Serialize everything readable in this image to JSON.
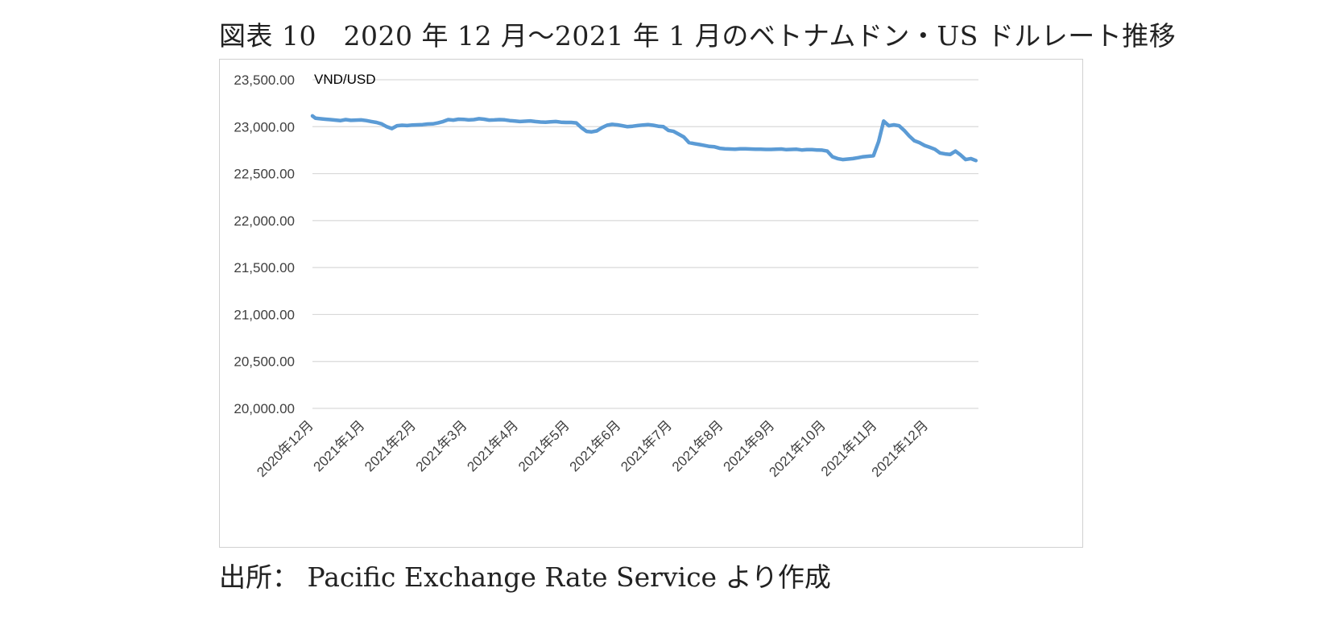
{
  "figure": {
    "title": "図表 10　2020 年 12 月～2021 年 1 月のベトナムドン・US ドルレート推移",
    "source": "出所：  Pacific Exchange Rate Service より作成"
  },
  "chart_data": {
    "type": "line",
    "title": "",
    "ylabel": "VND/USD",
    "xlabel": "",
    "ylim": [
      20000,
      23500
    ],
    "y_ticks": [
      "23,500.00",
      "23,000.00",
      "22,500.00",
      "22,000.00",
      "21,500.00",
      "21,000.00",
      "20,500.00",
      "20,000.00"
    ],
    "y_tick_values": [
      23500,
      23000,
      22500,
      22000,
      21500,
      21000,
      20500,
      20000
    ],
    "categories": [
      "2020年12月",
      "2021年1月",
      "2021年2月",
      "2021年3月",
      "2021年4月",
      "2021年5月",
      "2021年6月",
      "2021年7月",
      "2021年8月",
      "2021年9月",
      "2021年10月",
      "2021年11月",
      "2021年12月"
    ],
    "grid": true,
    "legend": "none",
    "line_color": "#5B9BD5",
    "series": [
      {
        "x": [
          0,
          0.06,
          0.15,
          0.25,
          0.35,
          0.45,
          0.55,
          0.65,
          0.75,
          0.85,
          0.95,
          1.05,
          1.15,
          1.25,
          1.35,
          1.45,
          1.55,
          1.65,
          1.75,
          1.85,
          1.95,
          2.05,
          2.15,
          2.25,
          2.35,
          2.45,
          2.55,
          2.65,
          2.75,
          2.85,
          2.95,
          3.05,
          3.15,
          3.25,
          3.35,
          3.45,
          3.55,
          3.65,
          3.75,
          3.85,
          3.95,
          4.05,
          4.15,
          4.25,
          4.35,
          4.45,
          4.55,
          4.65,
          4.75,
          4.85,
          4.95,
          5.05,
          5.15,
          5.25,
          5.35,
          5.45,
          5.55,
          5.65,
          5.75,
          5.85,
          5.95,
          6.05,
          6.15,
          6.25,
          6.35,
          6.45,
          6.55,
          6.65,
          6.75,
          6.85,
          6.95,
          7.05,
          7.15,
          7.25,
          7.35,
          7.45,
          7.55,
          7.65,
          7.75,
          7.85,
          7.95,
          8.05,
          8.15,
          8.25,
          8.35,
          8.45,
          8.55,
          8.65,
          8.75,
          8.85,
          8.95,
          9.05,
          9.15,
          9.25,
          9.35,
          9.45,
          9.55,
          9.65,
          9.75,
          9.85,
          9.95,
          10.05,
          10.15,
          10.25,
          10.35,
          10.45,
          10.55,
          10.65,
          10.75,
          10.85,
          10.95,
          11.05,
          11.15,
          11.25,
          11.35,
          11.45,
          11.55,
          11.65,
          11.75,
          11.85,
          11.95,
          12.05,
          12.15,
          12.25,
          12.35,
          12.45,
          12.55,
          12.65,
          12.75,
          12.85,
          12.95
        ],
        "values": [
          23115,
          23090,
          23085,
          23080,
          23075,
          23070,
          23065,
          23075,
          23068,
          23070,
          23072,
          23065,
          23055,
          23045,
          23030,
          23000,
          22980,
          23010,
          23015,
          23012,
          23018,
          23020,
          23022,
          23028,
          23030,
          23040,
          23055,
          23075,
          23070,
          23080,
          23078,
          23072,
          23075,
          23085,
          23080,
          23070,
          23072,
          23075,
          23073,
          23065,
          23060,
          23055,
          23058,
          23062,
          23055,
          23050,
          23048,
          23052,
          23055,
          23048,
          23045,
          23045,
          23040,
          22990,
          22950,
          22945,
          22955,
          22990,
          23015,
          23025,
          23020,
          23010,
          23000,
          23005,
          23012,
          23018,
          23022,
          23015,
          23005,
          23000,
          22960,
          22950,
          22920,
          22890,
          22830,
          22820,
          22810,
          22800,
          22790,
          22785,
          22770,
          22765,
          22762,
          22760,
          22765,
          22765,
          22762,
          22760,
          22760,
          22758,
          22758,
          22760,
          22762,
          22755,
          22758,
          22760,
          22752,
          22755,
          22755,
          22752,
          22750,
          22740,
          22680,
          22660,
          22650,
          22655,
          22660,
          22670,
          22680,
          22685,
          22690,
          22840,
          23060,
          23010,
          23020,
          23010,
          22960,
          22900,
          22850,
          22830,
          22800,
          22780,
          22760,
          22720,
          22710,
          22705,
          22740,
          22700,
          22650,
          22660,
          22640
        ]
      }
    ]
  }
}
